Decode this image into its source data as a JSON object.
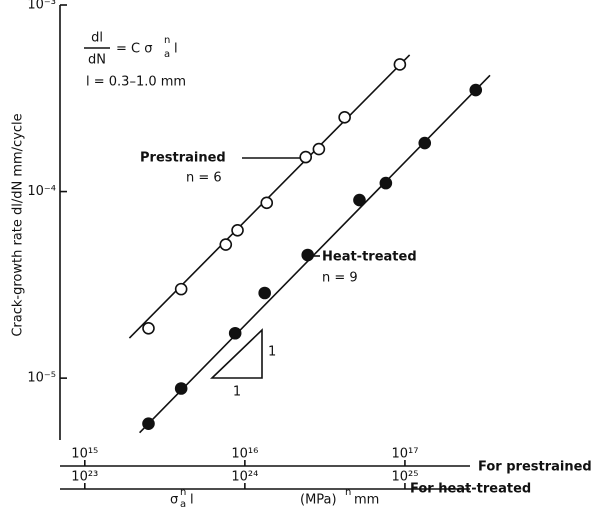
{
  "chart_data": {
    "type": "scatter",
    "y_label": "Crack-growth rate   dl/dN  mm/cycle",
    "formula": {
      "numerator": "dl",
      "denominator": "dN",
      "rhs": "= C σ",
      "subscript": "a",
      "superscript": "n",
      "tail": "l"
    },
    "range_note": "l = 0.3–1.0 mm",
    "x_label": {
      "symbol": "σ",
      "subscript": "a",
      "superscript": "n",
      "tail": "l",
      "unit": "(MPa)",
      "unit_superscript": "n",
      "unit_tail": "mm"
    },
    "x_axis_label": "For prestrained",
    "x2_axis_label": "For heat-treated",
    "log_x": true,
    "log_y": true,
    "xlim": [
      700000000000000.0,
      3.4e+17
    ],
    "xticks": [
      {
        "value": 1000000000000000.0,
        "label": "10¹⁵"
      },
      {
        "value": 1e+16,
        "label": "10¹⁶"
      },
      {
        "value": 1e+17,
        "label": "10¹⁷"
      }
    ],
    "x2lim": [
      7e+22,
      3.4e+25
    ],
    "x2ticks": [
      {
        "value": 1e+23,
        "label": "10²³"
      },
      {
        "value": 1e+24,
        "label": "10²⁴"
      },
      {
        "value": 1e+25,
        "label": "10²⁵"
      }
    ],
    "ylim": [
      4.66e-06,
      0.001
    ],
    "yticks": [
      {
        "value": 0.001,
        "label": "10⁻³"
      },
      {
        "value": 0.0001,
        "label": "10⁻⁴"
      },
      {
        "value": 1e-05,
        "label": "10⁻⁵"
      }
    ],
    "slope_labels": [
      "1",
      "1"
    ],
    "series": [
      {
        "name": "Prestrained",
        "note": "n = 6",
        "marker": "open",
        "color": "#111111",
        "axis": "x",
        "x": [
          2500000000000000.0,
          4000000000000000.0,
          7600000000000000.0,
          9000000000000000.0,
          1.37e+16,
          2.4e+16,
          2.9e+16,
          4.2e+16,
          9.3e+16
        ],
        "values": [
          1.85e-05,
          3e-05,
          5.2e-05,
          6.2e-05,
          8.7e-05,
          0.000153,
          0.000169,
          0.00025,
          0.00048
        ],
        "fit_x": [
          1900000000000000.0,
          1.07e+17
        ],
        "fit_y": [
          1.64e-05,
          0.00054
        ]
      },
      {
        "name": "Heat-treated",
        "note": "n = 9",
        "marker": "filled",
        "color": "#111111",
        "axis": "x2",
        "x": [
          2.5e+23,
          4e+23,
          8.7e+23,
          1.33e+24,
          2.47e+24,
          5.2e+24,
          7.6e+24,
          1.33e+25,
          2.77e+25
        ],
        "values": [
          5.7e-06,
          8.8e-06,
          1.74e-05,
          2.86e-05,
          4.57e-05,
          9e-05,
          0.000111,
          0.000182,
          0.00035
        ],
        "fit_x": [
          2.2e+23,
          3.4e+25
        ],
        "fit_y": [
          5.1e-06,
          0.00042
        ]
      }
    ]
  }
}
